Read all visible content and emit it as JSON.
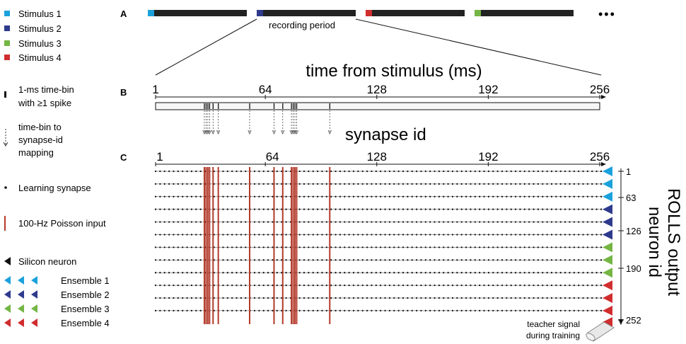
{
  "legend": {
    "stimuli": [
      {
        "label": "Stimulus 1",
        "color": "#1ba1dc"
      },
      {
        "label": "Stimulus 2",
        "color": "#2e3a8c"
      },
      {
        "label": "Stimulus 3",
        "color": "#74b544"
      },
      {
        "label": "Stimulus 4",
        "color": "#d02d2f"
      }
    ],
    "time_bin": [
      "1-ms time-bin",
      "with ≥1 spike"
    ],
    "mapping": [
      "time-bin to",
      "synapse-id",
      "mapping"
    ],
    "learning_synapse": "Learning synapse",
    "poisson": "100-Hz Poisson input",
    "silicon_neuron": "Silicon neuron",
    "ensembles": [
      {
        "label": "Ensemble 1",
        "color": "#1ba1dc"
      },
      {
        "label": "Ensemble 2",
        "color": "#2e3a8c"
      },
      {
        "label": "Ensemble 3",
        "color": "#74b544"
      },
      {
        "label": "Ensemble 4",
        "color": "#d02d2f"
      }
    ]
  },
  "panels": {
    "a": "A",
    "b": "B",
    "c": "C"
  },
  "panel_a": {
    "recording_label": "recording period",
    "ellipsis": "•••",
    "blocks": [
      {
        "stimulus": 1,
        "color": "#1ba1dc"
      },
      {
        "stimulus": 2,
        "color": "#2e3a8c"
      },
      {
        "stimulus": 4,
        "color": "#d02d2f"
      },
      {
        "stimulus": 3,
        "color": "#74b544"
      }
    ]
  },
  "panel_b": {
    "title": "time from stimulus (ms)",
    "axis_range": [
      1,
      256
    ],
    "ticks": [
      "1",
      "64",
      "128",
      "192",
      "256"
    ],
    "tick_values": [
      1,
      64,
      128,
      192,
      256
    ],
    "spike_bins": [
      29,
      30,
      31,
      32,
      34,
      37,
      55,
      69,
      74,
      79,
      80,
      81,
      82,
      101
    ]
  },
  "panel_c": {
    "title": "synapse id",
    "axis_range": [
      1,
      256
    ],
    "ticks": [
      "1",
      "64",
      "128",
      "192",
      "256"
    ],
    "tick_values": [
      1,
      64,
      128,
      192,
      256
    ],
    "poisson_synapses": [
      29,
      30,
      31,
      32,
      34,
      37,
      55,
      69,
      74,
      79,
      80,
      81,
      82,
      101
    ],
    "rows": 12,
    "neuron_axis_title": [
      "ROLLS output",
      "neuron id"
    ],
    "neuron_ticks": [
      "1",
      "63",
      "126",
      "190",
      "252"
    ],
    "row_ensembles": [
      1,
      1,
      1,
      2,
      2,
      2,
      3,
      3,
      3,
      4,
      4,
      4
    ],
    "teacher_label": [
      "teacher signal",
      "during training"
    ]
  }
}
